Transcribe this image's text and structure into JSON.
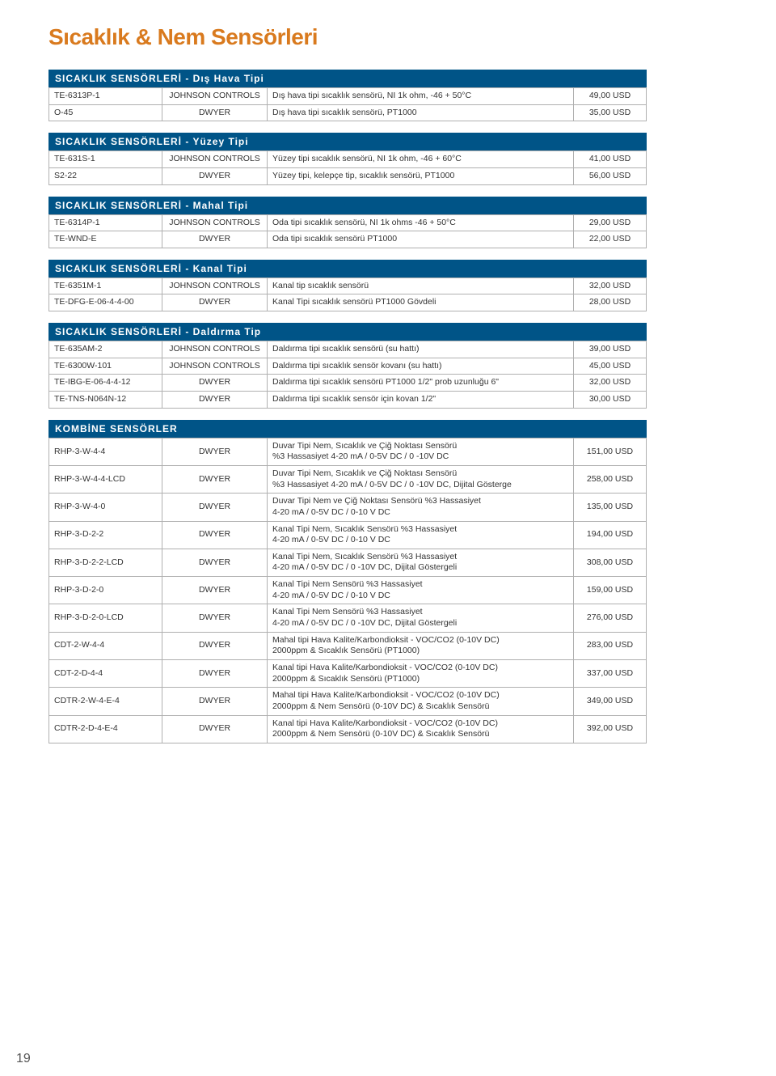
{
  "pageTitle": "Sıcaklık & Nem Sensörleri",
  "pageNumber": "19",
  "sections": [
    {
      "header": "SICAKLIK SENSÖRLERİ - Dış Hava Tipi",
      "rows": [
        {
          "code": "TE-6313P-1",
          "brand": "JOHNSON CONTROLS",
          "desc": "Dış hava tipi sıcaklık sensörü, NI 1k ohm,  -46 + 50°C",
          "price": "49,00 USD"
        },
        {
          "code": "O-45",
          "brand": "DWYER",
          "desc": "Dış hava tipi sıcaklık sensörü, PT1000",
          "price": "35,00 USD"
        }
      ]
    },
    {
      "header": "SICAKLIK SENSÖRLERİ - Yüzey Tipi",
      "rows": [
        {
          "code": "TE-631S-1",
          "brand": "JOHNSON CONTROLS",
          "desc": "Yüzey tipi sıcaklık sensörü, NI 1k ohm, -46 + 60°C",
          "price": "41,00 USD"
        },
        {
          "code": "S2-22",
          "brand": "DWYER",
          "desc": "Yüzey tipi, kelepçe tip, sıcaklık sensörü, PT1000",
          "price": "56,00 USD"
        }
      ]
    },
    {
      "header": "SICAKLIK SENSÖRLERİ - Mahal Tipi",
      "rows": [
        {
          "code": "TE-6314P-1",
          "brand": "JOHNSON CONTROLS",
          "desc": "Oda tipi sıcaklık sensörü, NI 1k ohms -46 + 50°C",
          "price": "29,00 USD"
        },
        {
          "code": "TE-WND-E",
          "brand": "DWYER",
          "desc": "Oda tipi sıcaklık sensörü PT1000",
          "price": "22,00 USD"
        }
      ]
    },
    {
      "header": "SICAKLIK SENSÖRLERİ - Kanal Tipi",
      "rows": [
        {
          "code": "TE-6351M-1",
          "brand": "JOHNSON CONTROLS",
          "desc": "Kanal tip sıcaklık sensörü",
          "price": "32,00 USD"
        },
        {
          "code": "TE-DFG-E-06-4-4-00",
          "brand": "DWYER",
          "desc": "Kanal Tipi sıcaklık sensörü PT1000 Gövdeli",
          "price": "28,00 USD"
        }
      ]
    },
    {
      "header": "SICAKLIK SENSÖRLERİ - Daldırma Tip",
      "rows": [
        {
          "code": "TE-635AM-2",
          "brand": "JOHNSON CONTROLS",
          "desc": "Daldırma tipi sıcaklık sensörü (su hattı)",
          "price": "39,00 USD"
        },
        {
          "code": "TE-6300W-101",
          "brand": "JOHNSON CONTROLS",
          "desc": "Daldırma tipi sıcaklık sensör kovanı (su hattı)",
          "price": "45,00 USD"
        },
        {
          "code": "TE-IBG-E-06-4-4-12",
          "brand": "DWYER",
          "desc": "Daldırma tipi sıcaklık sensörü PT1000 1/2\" prob uzunluğu 6\"",
          "price": "32,00 USD"
        },
        {
          "code": "TE-TNS-N064N-12",
          "brand": "DWYER",
          "desc": "Daldırma tipi sıcaklık sensör için kovan 1/2\"",
          "price": "30,00 USD"
        }
      ]
    },
    {
      "header": "KOMBİNE SENSÖRLER",
      "rows": [
        {
          "code": "RHP-3-W-4-4",
          "brand": "DWYER",
          "desc": "Duvar Tipi Nem, Sıcaklık ve Çiğ Noktası Sensörü\n%3 Hassasiyet 4-20 mA / 0-5V DC / 0 -10V DC",
          "price": "151,00 USD"
        },
        {
          "code": "RHP-3-W-4-4-LCD",
          "brand": "DWYER",
          "desc": "Duvar Tipi Nem, Sıcaklık ve Çiğ Noktası Sensörü\n%3 Hassasiyet 4-20 mA / 0-5V DC / 0 -10V DC, Dijital Gösterge",
          "price": "258,00 USD"
        },
        {
          "code": "RHP-3-W-4-0",
          "brand": "DWYER",
          "desc": "Duvar Tipi Nem ve Çiğ Noktası Sensörü %3 Hassasiyet\n4-20 mA / 0-5V DC / 0-10 V DC",
          "price": "135,00 USD"
        },
        {
          "code": "RHP-3-D-2-2",
          "brand": "DWYER",
          "desc": "Kanal Tipi Nem, Sıcaklık Sensörü %3 Hassasiyet\n4-20 mA / 0-5V DC / 0-10 V DC",
          "price": "194,00 USD"
        },
        {
          "code": "RHP-3-D-2-2-LCD",
          "brand": "DWYER",
          "desc": "Kanal Tipi Nem, Sıcaklık Sensörü %3 Hassasiyet\n4-20 mA / 0-5V DC / 0 -10V DC, Dijital Göstergeli",
          "price": "308,00 USD"
        },
        {
          "code": "RHP-3-D-2-0",
          "brand": "DWYER",
          "desc": "Kanal Tipi Nem Sensörü %3 Hassasiyet\n4-20 mA / 0-5V DC / 0-10 V DC",
          "price": "159,00 USD"
        },
        {
          "code": "RHP-3-D-2-0-LCD",
          "brand": "DWYER",
          "desc": "Kanal Tipi Nem Sensörü %3 Hassasiyet\n4-20 mA / 0-5V DC / 0 -10V DC, Dijital Göstergeli",
          "price": "276,00 USD"
        },
        {
          "code": "CDT-2-W-4-4",
          "brand": "DWYER",
          "desc": "Mahal tipi Hava Kalite/Karbondioksit - VOC/CO2 (0-10V DC)\n2000ppm & Sıcaklık Sensörü (PT1000)",
          "price": "283,00 USD"
        },
        {
          "code": "CDT-2-D-4-4",
          "brand": "DWYER",
          "desc": "Kanal tipi Hava Kalite/Karbondioksit - VOC/CO2 (0-10V DC)\n2000ppm & Sıcaklık Sensörü (PT1000)",
          "price": "337,00 USD"
        },
        {
          "code": "CDTR-2-W-4-E-4",
          "brand": "DWYER",
          "desc": "Mahal tipi Hava Kalite/Karbondioksit - VOC/CO2 (0-10V DC)\n2000ppm & Nem Sensörü (0-10V DC) & Sıcaklık Sensörü",
          "price": "349,00 USD"
        },
        {
          "code": "CDTR-2-D-4-E-4",
          "brand": "DWYER",
          "desc": "Kanal tipi Hava Kalite/Karbondioksit - VOC/CO2 (0-10V DC)\n2000ppm & Nem Sensörü (0-10V DC) & Sıcaklık Sensörü",
          "price": "392,00 USD"
        }
      ]
    }
  ],
  "colors": {
    "titleColor": "#d97a1e",
    "headerBg": "#005487",
    "headerText": "#ffffff",
    "border": "#b0b0b0"
  },
  "layout": {
    "tableWidth": 740,
    "colCodeWidth": 140,
    "colBrandWidth": 130,
    "colPriceWidth": 90
  }
}
